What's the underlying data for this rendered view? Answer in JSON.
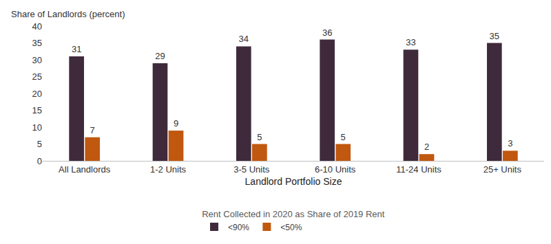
{
  "chart_data": {
    "type": "bar",
    "y_label": "Share of Landlords (percent)",
    "x_label": "Landlord Portfolio Size",
    "legend_title": "Rent Collected in 2020 as Share of 2019 Rent",
    "categories": [
      "All Landlords",
      "1-2 Units",
      "3-5 Units",
      "6-10 Units",
      "11-24 Units",
      "25+ Units"
    ],
    "series": [
      {
        "name": "<90%",
        "color": "#3f2a3c",
        "values": [
          31,
          29,
          34,
          36,
          33,
          35
        ]
      },
      {
        "name": "<50%",
        "color": "#c0580f",
        "values": [
          7,
          9,
          5,
          5,
          2,
          3
        ]
      }
    ],
    "ylim": [
      0,
      40
    ],
    "yticks": [
      0,
      5,
      10,
      15,
      20,
      25,
      30,
      35,
      40
    ],
    "grid": false,
    "legend": "bottom",
    "data_labels": true
  }
}
